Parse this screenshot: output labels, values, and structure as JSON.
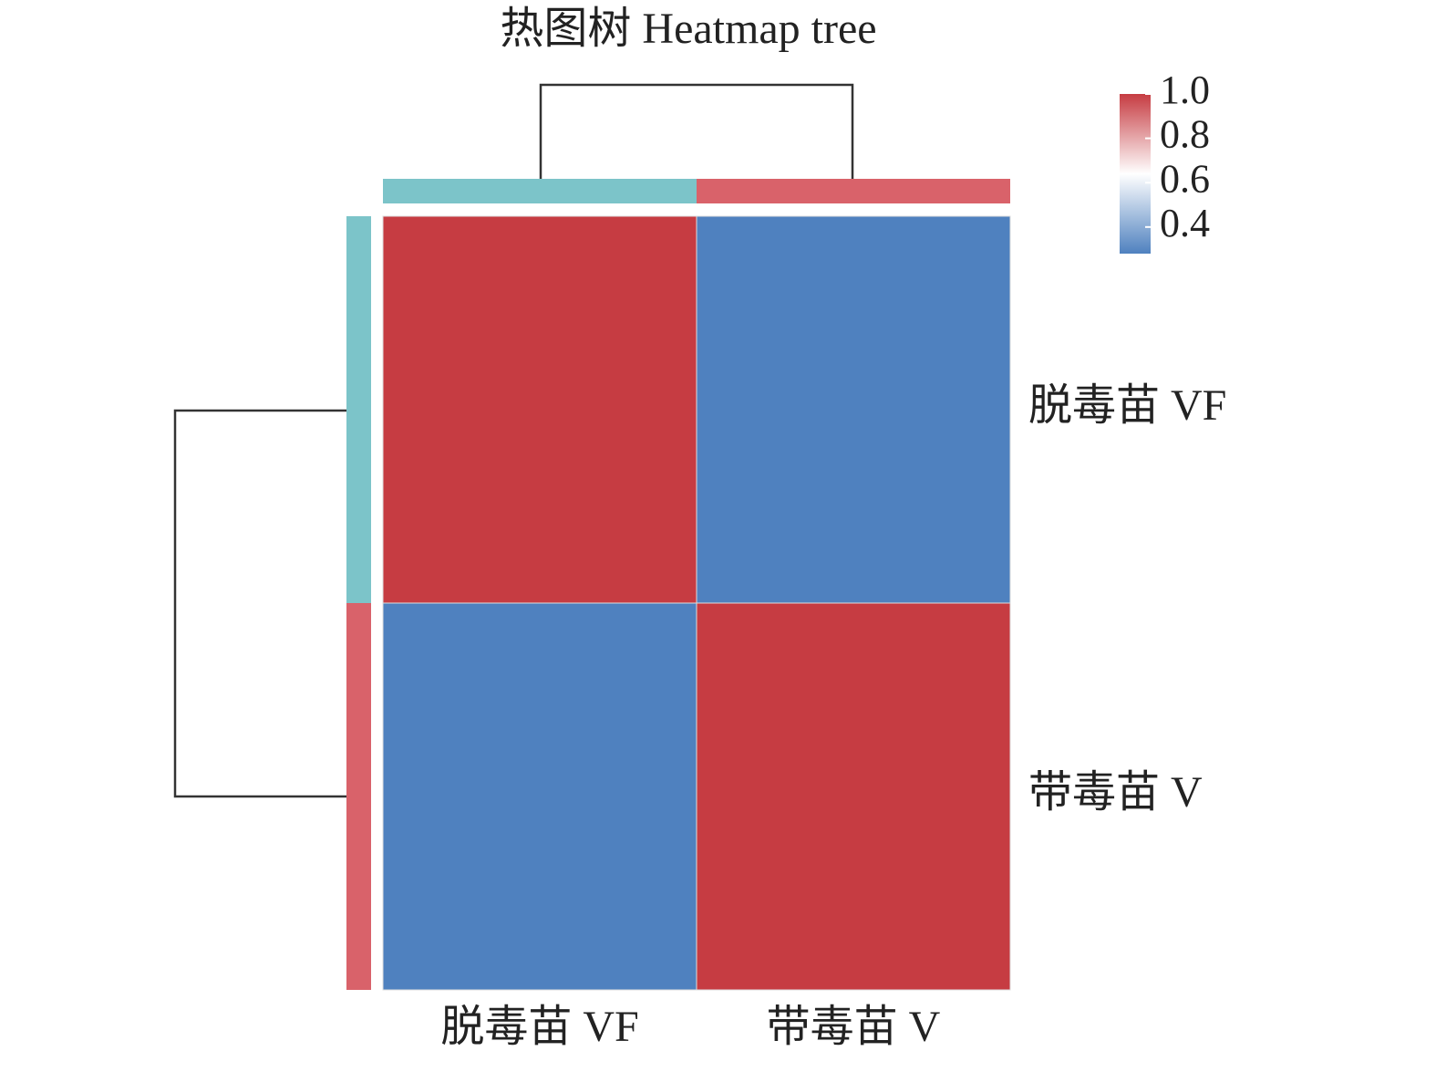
{
  "chart_data": {
    "type": "heatmap",
    "title": "热图树 Heatmap tree",
    "x_categories": [
      "脱毒苗 VF",
      "带毒苗 V"
    ],
    "y_categories": [
      "脱毒苗 VF",
      "带毒苗 V"
    ],
    "values": [
      [
        1.0,
        0.28
      ],
      [
        0.28,
        1.0
      ]
    ],
    "zlim": [
      0.28,
      1.0
    ],
    "colorbar_ticks": [
      0.4,
      0.6,
      0.8,
      {
        "value": 1.0,
        "label": "1.0"
      }
    ],
    "colormap": [
      "#4f81bf",
      "#ffffff",
      "#c63c42"
    ],
    "annotation_colors": [
      "#7cc4c9",
      "#d9626a"
    ]
  }
}
